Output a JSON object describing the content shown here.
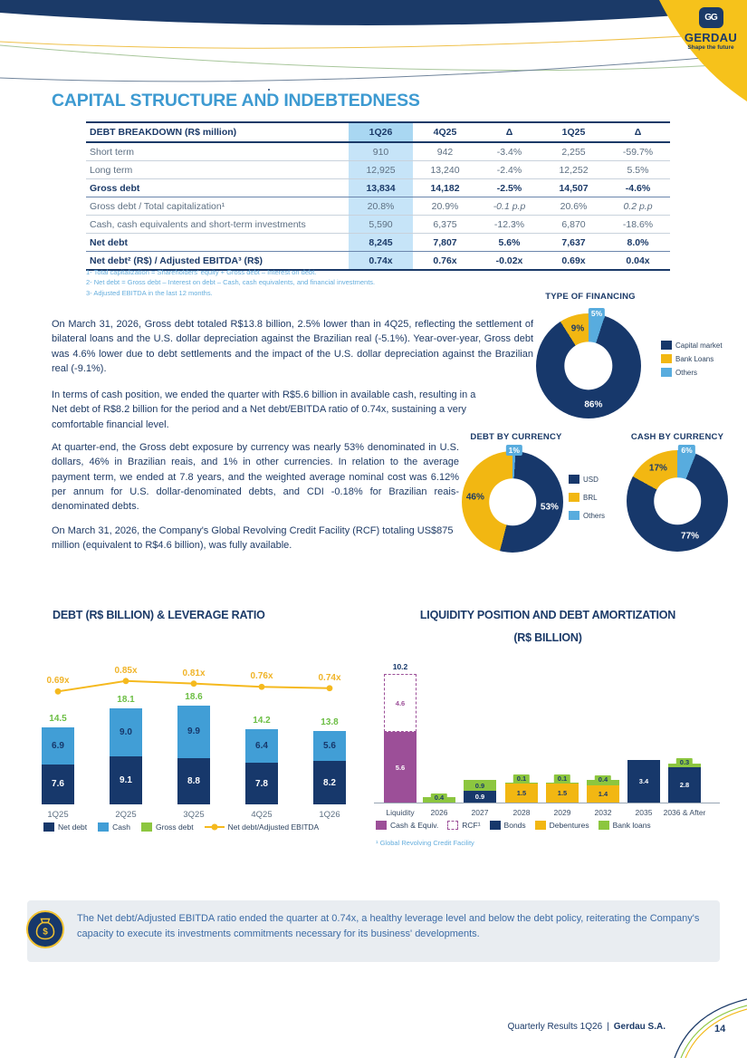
{
  "brand": {
    "monogram": "GG",
    "name": "GERDAU",
    "tagline": "Shape the future"
  },
  "page_title": "CAPITAL STRUCTURE AND INDEBTEDNESS",
  "debt_table": {
    "title": "DEBT BREAKDOWN (R$ million)",
    "columns": [
      "1Q26",
      "4Q25",
      "Δ",
      "1Q25",
      "Δ"
    ],
    "rows": [
      {
        "label": "Short term",
        "bold": false,
        "values": [
          "910",
          "942",
          "-3.4%",
          "2,255",
          "-59.7%"
        ]
      },
      {
        "label": "Long term",
        "bold": false,
        "values": [
          "12,925",
          "13,240",
          "-2.4%",
          "12,252",
          "5.5%"
        ]
      },
      {
        "label": "Gross debt",
        "bold": true,
        "values": [
          "13,834",
          "14,182",
          "-2.5%",
          "14,507",
          "-4.6%"
        ]
      },
      {
        "label": "Gross debt / Total capitalization¹",
        "bold": false,
        "values": [
          "20.8%",
          "20.9%",
          "-0.1 p.p",
          "20.6%",
          "0.2 p.p"
        ]
      },
      {
        "label": "Cash, cash equivalents and short-term investments",
        "bold": false,
        "values": [
          "5,590",
          "6,375",
          "-12.3%",
          "6,870",
          "-18.6%"
        ]
      },
      {
        "label": "Net debt",
        "bold": true,
        "values": [
          "8,245",
          "7,807",
          "5.6%",
          "7,637",
          "8.0%"
        ]
      },
      {
        "label": "Net debt² (R$) / Adjusted EBITDA³ (R$)",
        "bold": true,
        "values": [
          "0.74x",
          "0.76x",
          "-0.02x",
          "0.69x",
          "0.04x"
        ]
      }
    ],
    "footnotes": [
      "1-  Total capitalization = Shareholders' equity + Gross debt – Interest on debt.",
      "2-  Net debt = Gross debt – Interest on debt – Cash, cash equivalents, and financial investments.",
      "3-  Adjusted EBITDA in the last 12 months."
    ]
  },
  "paragraphs": [
    "On March 31, 2026, Gross debt totaled R$13.8 billion, 2.5% lower than in 4Q25, reflecting the settlement of bilateral loans and the U.S. dollar depreciation against the Brazilian real (-5.1%). Year-over-year, Gross debt was 4.6% lower due to debt settlements and the impact of the U.S. dollar depreciation against the Brazilian real (-9.1%).",
    "In terms of cash position, we ended the quarter with R$5.6 billion in available cash, resulting in a Net debt of R$8.2 billion for the period and a Net debt/EBITDA ratio of 0.74x, sustaining a very comfortable financial level.",
    "At quarter-end, the Gross debt exposure by currency was nearly 53% denominated in U.S. dollars, 46% in Brazilian reais, and 1% in other currencies. In relation to the average payment term, we ended at 7.8 years, and the weighted average nominal cost was 6.12% per annum for U.S. dollar-denominated debts, and CDI -0.18% for Brazilian reais-denominated debts.",
    "On March 31, 2026, the Company's Global Revolving Credit Facility (RCF) totaling US$875 million (equivalent to R$4.6 billion), was fully available."
  ],
  "charts": {
    "donuts": [
      {
        "title": "TYPE OF FINANCING",
        "slices": [
          {
            "label": "Others",
            "pct": 5,
            "color": "#58ACDE",
            "boxed": true
          },
          {
            "label": "Capital market",
            "pct": 86,
            "color": "#17386B",
            "text": "#FFFFFF"
          },
          {
            "label": "Bank Loans",
            "pct": 9,
            "color": "#F2B712",
            "text": "#1B3A68"
          }
        ],
        "legend": [
          {
            "label": "Capital market",
            "color": "#17386B",
            "swatch": "solid"
          },
          {
            "label": "Bank Loans",
            "color": "#F2B712",
            "swatch": "solid"
          },
          {
            "label": "Others",
            "color": "#58ACDE",
            "swatch": "solid"
          }
        ]
      },
      {
        "title": "DEBT BY CURRENCY",
        "slices": [
          {
            "label": "Others",
            "pct": 1,
            "color": "#58ACDE",
            "boxed": true
          },
          {
            "label": "USD",
            "pct": 53,
            "color": "#17386B",
            "text": "#FFFFFF"
          },
          {
            "label": "BRL",
            "pct": 46,
            "color": "#F2B712",
            "text": "#1B3A68"
          }
        ]
      },
      {
        "title": "CASH BY CURRENCY",
        "slices": [
          {
            "label": "Others",
            "pct": 6,
            "color": "#58ACDE",
            "boxed": true
          },
          {
            "label": "USD",
            "pct": 77,
            "color": "#17386B",
            "text": "#FFFFFF"
          },
          {
            "label": "BRL",
            "pct": 17,
            "color": "#F2B712",
            "text": "#1B3A68"
          }
        ]
      }
    ],
    "currency_legend": [
      {
        "label": "USD",
        "color": "#17386B",
        "swatch": "solid"
      },
      {
        "label": "BRL",
        "color": "#F2B712",
        "swatch": "solid"
      },
      {
        "label": "Others",
        "color": "#58ACDE",
        "swatch": "solid"
      }
    ]
  },
  "chart_data": [
    {
      "type": "bar+line",
      "title": "DEBT (R$ BILLION) & LEVERAGE RATIO",
      "categories": [
        "1Q25",
        "2Q25",
        "3Q25",
        "4Q25",
        "1Q26"
      ],
      "series": [
        {
          "name": "Net debt",
          "color": "#17386B",
          "values": [
            7.6,
            9.1,
            8.8,
            7.8,
            8.2
          ]
        },
        {
          "name": "Cash",
          "color": "#419ED6",
          "values": [
            6.9,
            9.0,
            9.9,
            6.4,
            5.6
          ]
        }
      ],
      "totals": {
        "name": "Gross debt",
        "color": "#6CBE44",
        "values": [
          14.5,
          18.1,
          18.6,
          14.2,
          13.8
        ]
      },
      "line": {
        "name": "Net debt/Adjusted EBITDA",
        "color": "#F5B91E",
        "suffix": "x",
        "values": [
          0.69,
          0.85,
          0.81,
          0.76,
          0.74
        ]
      },
      "legend": [
        {
          "label": "Net debt",
          "color": "#17386B",
          "swatch": "solid"
        },
        {
          "label": "Cash",
          "color": "#419ED6",
          "swatch": "solid"
        },
        {
          "label": "Gross debt",
          "color": "#8CC63F",
          "swatch": "solid"
        },
        {
          "label": "Net debt/Adjusted EBITDA",
          "color": "#F5B91E",
          "swatch": "line"
        }
      ]
    },
    {
      "type": "stacked-bar",
      "title": "LIQUIDITY POSITION AND DEBT AMORTIZATION",
      "subtitle": "(R$ BILLION)",
      "categories": [
        "Liquidity",
        "2026",
        "2027",
        "2028",
        "2029",
        "2032",
        "2035",
        "2036 & After"
      ],
      "bars": [
        {
          "total": 10.2,
          "segments": [
            {
              "name": "Cash & Equiv.",
              "value": 5.6,
              "color": "#9C4F98",
              "label_style": "light"
            },
            {
              "name": "RCF",
              "value": 4.6,
              "color": "#9C4F98",
              "style": "dashed",
              "label_style": "purple"
            }
          ]
        },
        {
          "segments": [
            {
              "name": "Bank loans",
              "value": 0.4,
              "color": "#8CC63F",
              "label_style": "pill"
            }
          ]
        },
        {
          "segments": [
            {
              "name": "Bonds",
              "value": 0.9,
              "color": "#17386B",
              "label_style": "light"
            },
            {
              "name": "Bank loans",
              "value": 0.9,
              "color": "#8CC63F",
              "label_style": "pill"
            }
          ]
        },
        {
          "segments": [
            {
              "name": "Debentures",
              "value": 1.5,
              "color": "#F2B712",
              "label_style": "dark"
            },
            {
              "name": "Bank loans",
              "value": 0.1,
              "color": "#8CC63F",
              "label_style": "pill"
            }
          ]
        },
        {
          "segments": [
            {
              "name": "Debentures",
              "value": 1.5,
              "color": "#F2B712",
              "label_style": "dark"
            },
            {
              "name": "Bank loans",
              "value": 0.1,
              "color": "#8CC63F",
              "label_style": "pill"
            }
          ]
        },
        {
          "segments": [
            {
              "name": "Debentures",
              "value": 1.4,
              "color": "#F2B712",
              "label_style": "dark"
            },
            {
              "name": "Bank loans",
              "value": 0.4,
              "color": "#8CC63F",
              "label_style": "pill"
            }
          ]
        },
        {
          "segments": [
            {
              "name": "Bonds",
              "value": 3.4,
              "color": "#17386B",
              "label_style": "light"
            }
          ]
        },
        {
          "segments": [
            {
              "name": "Bonds",
              "value": 2.8,
              "color": "#17386B",
              "label_style": "light"
            },
            {
              "name": "Bank loans",
              "value": 0.3,
              "color": "#8CC63F",
              "label_style": "pill"
            }
          ]
        }
      ],
      "legend": [
        {
          "label": "Cash & Equiv.",
          "color": "#9C4F98",
          "swatch": "solid"
        },
        {
          "label": "RCF¹",
          "color": "#9C4F98",
          "swatch": "dashed"
        },
        {
          "label": "Bonds",
          "color": "#17386B",
          "swatch": "solid"
        },
        {
          "label": "Debentures",
          "color": "#F2B712",
          "swatch": "solid"
        },
        {
          "label": "Bank loans",
          "color": "#8CC63F",
          "swatch": "solid"
        }
      ],
      "footnote": "¹ Global Revolving Credit Facility"
    }
  ],
  "callout": {
    "text": "The Net debt/Adjusted EBITDA ratio ended the quarter at 0.74x, a healthy leverage level and below the debt policy, reiterating the Company's capacity to execute its investments commitments necessary for its business' developments."
  },
  "footer": {
    "left": "Quarterly Results 1Q26",
    "separator": "|",
    "brand": "Gerdau S.A.",
    "page_number": "14"
  },
  "colors": {
    "navy": "#17386B",
    "title_blue": "#3D9AD1",
    "yellow": "#F2B712",
    "green": "#8CC63F",
    "light_blue": "#58ACDE",
    "purple": "#9C4F98",
    "banner_yellow": "#F6C21B"
  }
}
